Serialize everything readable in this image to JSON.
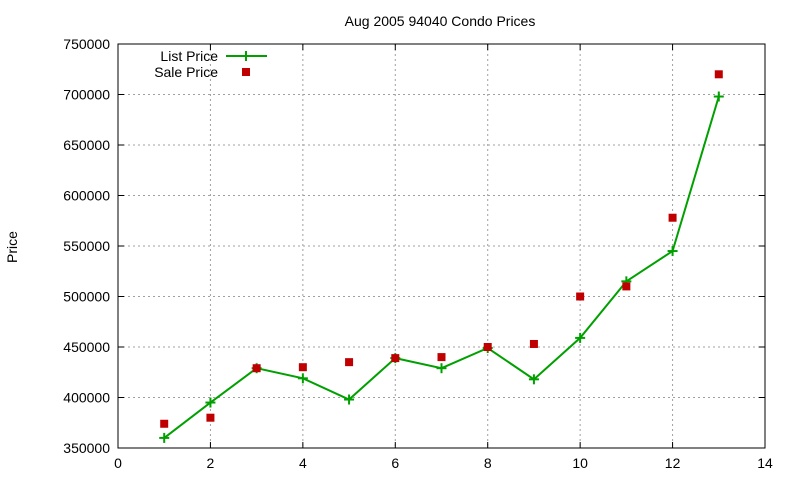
{
  "chart_data": {
    "type": "line",
    "title": "Aug 2005 94040 Condo Prices",
    "xlabel": "",
    "ylabel": "Price",
    "xlim": [
      0,
      14
    ],
    "ylim": [
      350000,
      750000
    ],
    "x_ticks": [
      0,
      2,
      4,
      6,
      8,
      10,
      12,
      14
    ],
    "y_ticks": [
      350000,
      400000,
      450000,
      500000,
      550000,
      600000,
      650000,
      700000,
      750000
    ],
    "grid": true,
    "legend_position": "top-left",
    "series": [
      {
        "name": "List Price",
        "style": "linespoints",
        "marker": "plus",
        "color": "#00a000",
        "x": [
          1,
          2,
          3,
          4,
          5,
          6,
          7,
          8,
          9,
          10,
          11,
          12,
          13
        ],
        "y": [
          360000,
          395000,
          429000,
          419000,
          398000,
          439000,
          429000,
          449000,
          418000,
          459000,
          515000,
          545000,
          698000
        ]
      },
      {
        "name": "Sale Price",
        "style": "points",
        "marker": "square",
        "color": "#c00000",
        "x": [
          1,
          2,
          3,
          4,
          5,
          6,
          7,
          8,
          9,
          10,
          11,
          12,
          13
        ],
        "y": [
          374000,
          380000,
          429000,
          430000,
          435000,
          439000,
          440000,
          450000,
          453000,
          500000,
          510000,
          578000,
          720000
        ]
      }
    ]
  }
}
